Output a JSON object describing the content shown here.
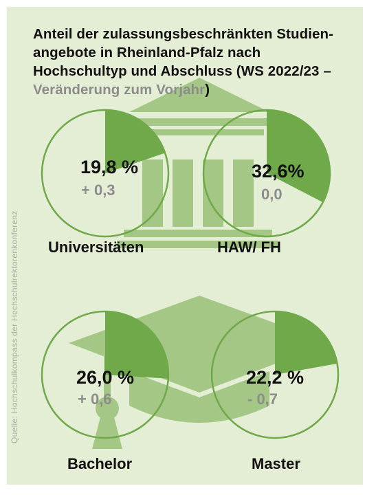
{
  "title_main": "Anteil der zulassungsbeschränkten Studien-angebote in Rheinland-Pfalz nach Hochschultyp und Abschluss (WS 2022/23 – ",
  "title_sub": "Veränderung zum Vorjahr",
  "title_end": ")",
  "source": "Quelle: Hochschulkompass der Hochschulrektorenkonferenz",
  "colors": {
    "panel": "#e3eed4",
    "icon": "#a5c785",
    "slice": "#6fa94a",
    "ring": "#6fa94a",
    "text": "#111111",
    "muted": "#8c8c8c"
  },
  "icons": [
    "university-building-icon",
    "graduation-cap-icon"
  ],
  "chart_data": {
    "type": "pie",
    "unit": "%",
    "items": [
      {
        "category": "Universitäten",
        "value": 19.8,
        "value_label": "19,8 %",
        "change": 0.3,
        "change_label": "+ 0,3"
      },
      {
        "category": "HAW/ FH",
        "value": 32.6,
        "value_label": "32,6%",
        "change": 0.0,
        "change_label": "0,0"
      },
      {
        "category": "Bachelor",
        "value": 26.0,
        "value_label": "26,0 %",
        "change": 0.6,
        "change_label": "+ 0,6"
      },
      {
        "category": "Master",
        "value": 22.2,
        "value_label": "22,2 %",
        "change": -0.7,
        "change_label": "- 0,7"
      }
    ]
  }
}
